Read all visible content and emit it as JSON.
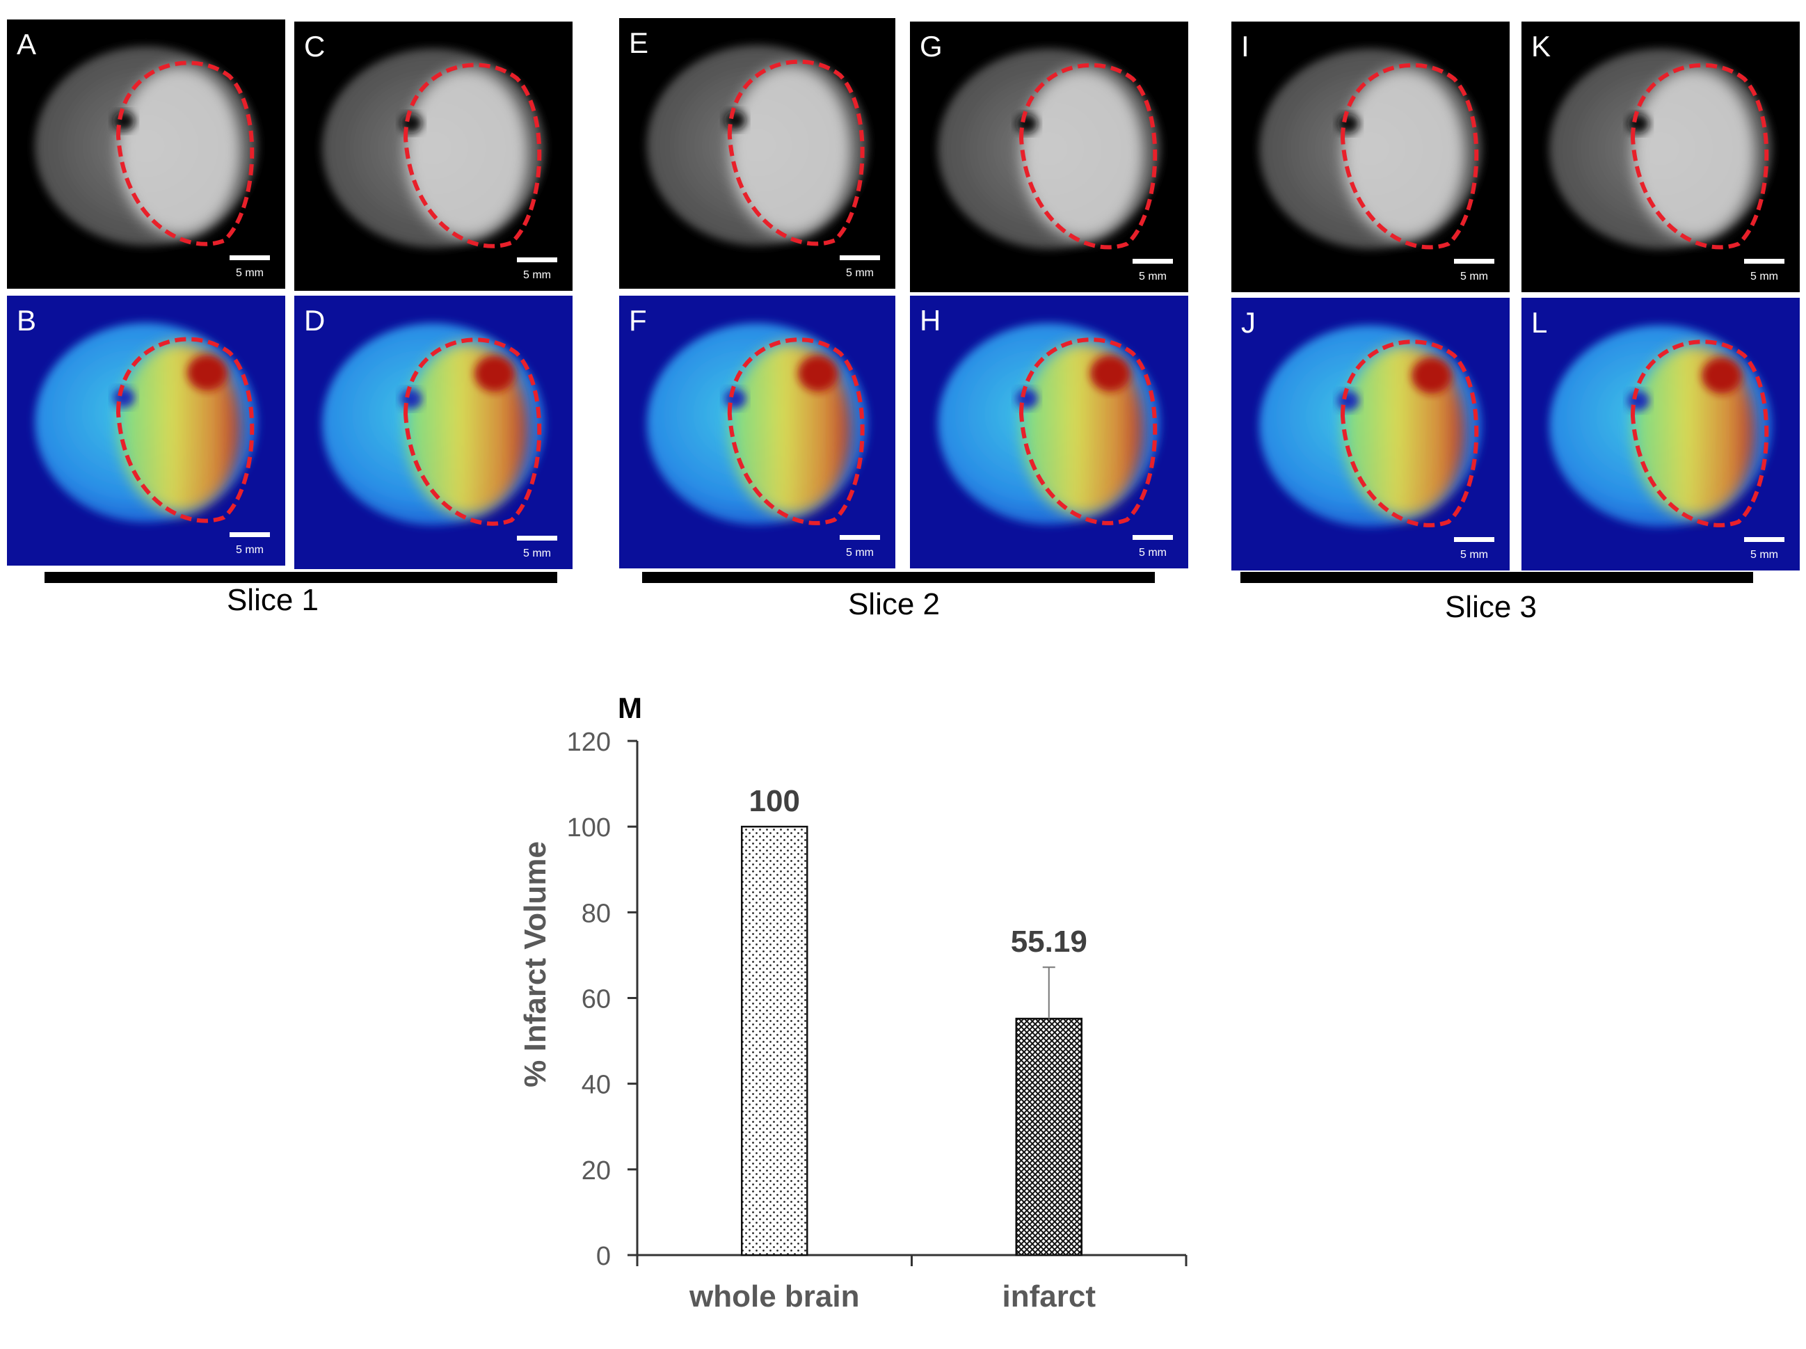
{
  "panels": [
    {
      "letter": "A",
      "mode": "gray",
      "scale": "5 mm"
    },
    {
      "letter": "B",
      "mode": "jet",
      "scale": "5 mm"
    },
    {
      "letter": "C",
      "mode": "gray",
      "scale": "5 mm"
    },
    {
      "letter": "D",
      "mode": "jet",
      "scale": "5 mm"
    },
    {
      "letter": "E",
      "mode": "gray",
      "scale": "5 mm"
    },
    {
      "letter": "F",
      "mode": "jet",
      "scale": "5 mm"
    },
    {
      "letter": "G",
      "mode": "gray",
      "scale": "5 mm"
    },
    {
      "letter": "H",
      "mode": "jet",
      "scale": "5 mm"
    },
    {
      "letter": "I",
      "mode": "gray",
      "scale": "5 mm"
    },
    {
      "letter": "J",
      "mode": "jet",
      "scale": "5 mm"
    },
    {
      "letter": "K",
      "mode": "gray",
      "scale": "5 mm"
    },
    {
      "letter": "L",
      "mode": "jet",
      "scale": "5 mm"
    }
  ],
  "slices": [
    {
      "label": "Slice 1"
    },
    {
      "label": "Slice 2"
    },
    {
      "label": "Slice 3"
    }
  ],
  "colors": {
    "roi_outline": "#e8202a",
    "panel_background_gray": "#000000",
    "panel_background_jet": "#0a0f9a",
    "axis": "#333333",
    "axis_text": "#595959"
  },
  "chart_data": {
    "type": "bar",
    "panel_letter": "M",
    "categories": [
      "whole brain",
      "infarct"
    ],
    "values": [
      100,
      55.19
    ],
    "error_bars": [
      null,
      12
    ],
    "data_labels": [
      "100",
      "55.19"
    ],
    "bar_patterns": [
      "sparse-dots",
      "dense-crosshatch"
    ],
    "title": "",
    "xlabel": "",
    "ylabel": "% Infarct Volume",
    "ylim": [
      0,
      120
    ],
    "yticks": [
      0,
      20,
      40,
      60,
      80,
      100,
      120
    ],
    "grid": false,
    "legend": "none"
  }
}
